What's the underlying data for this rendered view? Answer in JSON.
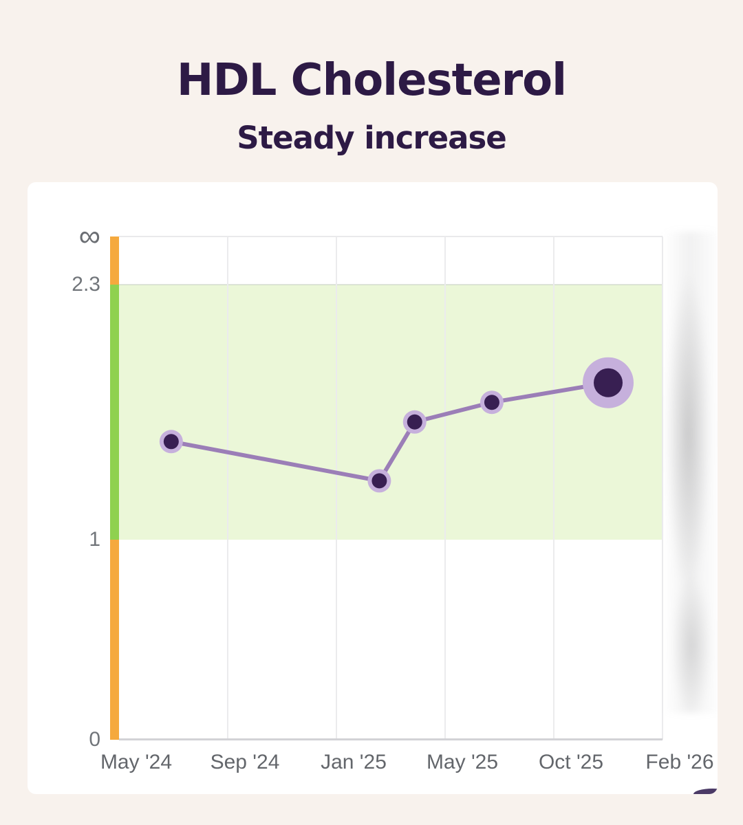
{
  "header": {
    "title": "HDL Cholesterol",
    "subtitle": "Steady increase"
  },
  "chart_data": {
    "type": "line",
    "title": "HDL Cholesterol",
    "subtitle": "Steady increase",
    "y_axis": {
      "ticks": [
        "∞",
        "2.3",
        "1",
        "0"
      ],
      "ylim": [
        0,
        "∞"
      ],
      "gridlines": true
    },
    "x_axis": {
      "ticks": [
        "May '24",
        "Sep '24",
        "Jan '25",
        "May '25",
        "Oct '25",
        "Feb '26"
      ]
    },
    "healthy_range": {
      "from": 1,
      "to": 2.3
    },
    "series": [
      {
        "name": "HDL",
        "points": [
          {
            "date": "Jul '24",
            "value": 1.5,
            "x_frac": 0.096
          },
          {
            "date": "Feb '25",
            "value": 1.3,
            "x_frac": 0.479
          },
          {
            "date": "Apr '25",
            "value": 1.6,
            "x_frac": 0.544
          },
          {
            "date": "Jul '25",
            "value": 1.7,
            "x_frac": 0.686
          },
          {
            "date": "Dec '25",
            "value": 1.8,
            "x_frac": 0.9,
            "emphasis": true
          }
        ]
      }
    ],
    "legend": {
      "visible": false
    },
    "colors": {
      "page_background": "#f8f2ed",
      "card_background": "#ffffff",
      "title_text": "#2d1a45",
      "band_out_of_range": "#f5a93e",
      "band_healthy": "#8fd14f",
      "healthy_fill": "#edf7e1",
      "series_line": "#9b7eb7",
      "point_ring": "#c6b0dc",
      "point_core": "#381f52",
      "axis_label": "#63666b",
      "gridline": "#ebebed",
      "bottom_dot": "#4b3a66"
    }
  }
}
